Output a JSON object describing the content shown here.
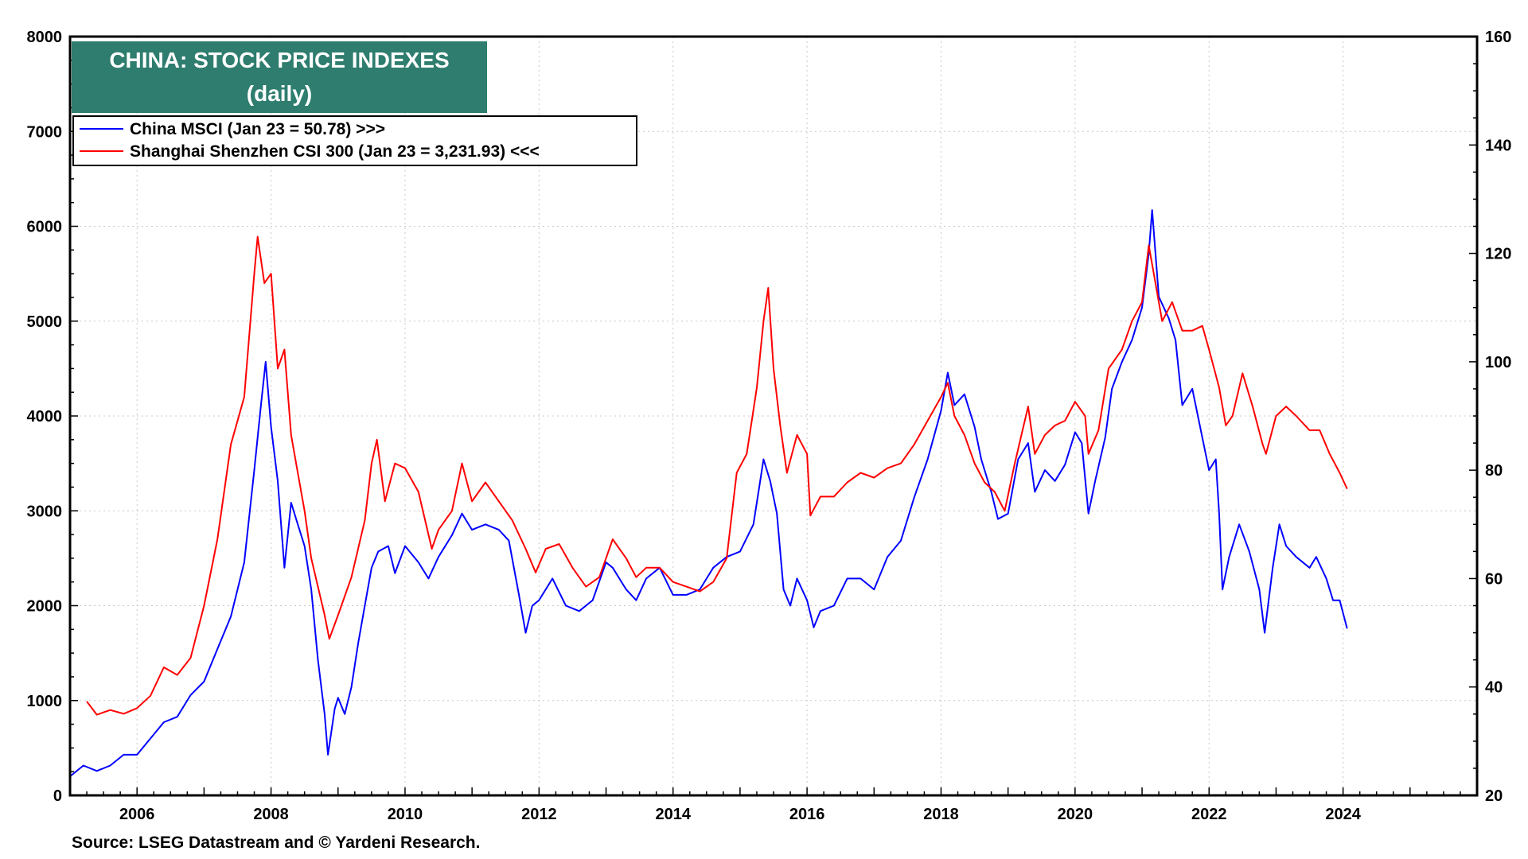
{
  "colors": {
    "title_bg": "#2e7d6e",
    "title_text": "#ffffff",
    "msci": "#0000ff",
    "csi": "#ff0000",
    "grid": "#c8c8c8",
    "axis": "#000000"
  },
  "chart_data": {
    "type": "line",
    "title": "CHINA: STOCK PRICE INDEXES",
    "subtitle": "(daily)",
    "source": "Source: LSEG Datastream and © Yardeni Research.",
    "grid": true,
    "legend_position": "top-left",
    "x_axis": {
      "range": [
        2005.0,
        2026.0
      ],
      "ticks": [
        2006,
        2008,
        2010,
        2012,
        2014,
        2016,
        2018,
        2020,
        2022,
        2024
      ],
      "tick_labels": [
        "2006",
        "2008",
        "2010",
        "2012",
        "2014",
        "2016",
        "2018",
        "2020",
        "2022",
        "2024"
      ]
    },
    "y_axis_left": {
      "range": [
        0,
        8000
      ],
      "ticks": [
        0,
        1000,
        2000,
        3000,
        4000,
        5000,
        6000,
        7000,
        8000
      ],
      "tick_labels": [
        "0",
        "1000",
        "2000",
        "3000",
        "4000",
        "5000",
        "6000",
        "7000",
        "8000"
      ]
    },
    "y_axis_right": {
      "range": [
        20,
        160
      ],
      "ticks": [
        20,
        40,
        60,
        80,
        100,
        120,
        140,
        160
      ],
      "tick_labels": [
        "20",
        "40",
        "60",
        "80",
        "100",
        "120",
        "140",
        "160"
      ]
    },
    "series": [
      {
        "name": "China MSCI (Jan 23 = 50.78) >>>",
        "axis": "right",
        "color": "#0000ff",
        "points": [
          [
            2005.0,
            23.5
          ],
          [
            2005.2,
            25.5
          ],
          [
            2005.4,
            24.5
          ],
          [
            2005.6,
            25.5
          ],
          [
            2005.8,
            27.5
          ],
          [
            2006.0,
            27.5
          ],
          [
            2006.2,
            30.5
          ],
          [
            2006.4,
            33.5
          ],
          [
            2006.6,
            34.5
          ],
          [
            2006.8,
            38.5
          ],
          [
            2007.0,
            41.0
          ],
          [
            2007.2,
            47.0
          ],
          [
            2007.4,
            53.0
          ],
          [
            2007.6,
            63.0
          ],
          [
            2007.75,
            80.0
          ],
          [
            2007.85,
            92.0
          ],
          [
            2007.92,
            100.0
          ],
          [
            2008.0,
            88.0
          ],
          [
            2008.1,
            78.0
          ],
          [
            2008.2,
            62.0
          ],
          [
            2008.3,
            74.0
          ],
          [
            2008.4,
            70.0
          ],
          [
            2008.5,
            66.0
          ],
          [
            2008.6,
            58.0
          ],
          [
            2008.7,
            45.0
          ],
          [
            2008.8,
            35.0
          ],
          [
            2008.85,
            27.5
          ],
          [
            2008.95,
            36.0
          ],
          [
            2009.0,
            38.0
          ],
          [
            2009.1,
            35.0
          ],
          [
            2009.2,
            40.0
          ],
          [
            2009.3,
            48.0
          ],
          [
            2009.4,
            55.0
          ],
          [
            2009.5,
            62.0
          ],
          [
            2009.6,
            65.0
          ],
          [
            2009.75,
            66.0
          ],
          [
            2009.85,
            61.0
          ],
          [
            2010.0,
            66.0
          ],
          [
            2010.2,
            63.0
          ],
          [
            2010.35,
            60.0
          ],
          [
            2010.5,
            64.0
          ],
          [
            2010.7,
            68.0
          ],
          [
            2010.85,
            72.0
          ],
          [
            2011.0,
            69.0
          ],
          [
            2011.2,
            70.0
          ],
          [
            2011.4,
            69.0
          ],
          [
            2011.55,
            67.0
          ],
          [
            2011.7,
            57.0
          ],
          [
            2011.8,
            50.0
          ],
          [
            2011.9,
            55.0
          ],
          [
            2012.0,
            56.0
          ],
          [
            2012.2,
            60.0
          ],
          [
            2012.4,
            55.0
          ],
          [
            2012.6,
            54.0
          ],
          [
            2012.8,
            56.0
          ],
          [
            2013.0,
            63.0
          ],
          [
            2013.1,
            62.0
          ],
          [
            2013.3,
            58.0
          ],
          [
            2013.45,
            56.0
          ],
          [
            2013.6,
            60.0
          ],
          [
            2013.8,
            62.0
          ],
          [
            2014.0,
            57.0
          ],
          [
            2014.2,
            57.0
          ],
          [
            2014.4,
            58.0
          ],
          [
            2014.6,
            62.0
          ],
          [
            2014.8,
            64.0
          ],
          [
            2015.0,
            65.0
          ],
          [
            2015.2,
            70.0
          ],
          [
            2015.3,
            78.0
          ],
          [
            2015.35,
            82.0
          ],
          [
            2015.45,
            78.0
          ],
          [
            2015.55,
            72.0
          ],
          [
            2015.65,
            58.0
          ],
          [
            2015.75,
            55.0
          ],
          [
            2015.85,
            60.0
          ],
          [
            2016.0,
            56.0
          ],
          [
            2016.1,
            51.0
          ],
          [
            2016.2,
            54.0
          ],
          [
            2016.4,
            55.0
          ],
          [
            2016.6,
            60.0
          ],
          [
            2016.8,
            60.0
          ],
          [
            2017.0,
            58.0
          ],
          [
            2017.2,
            64.0
          ],
          [
            2017.4,
            67.0
          ],
          [
            2017.6,
            75.0
          ],
          [
            2017.8,
            82.0
          ],
          [
            2018.0,
            91.0
          ],
          [
            2018.1,
            98.0
          ],
          [
            2018.2,
            92.0
          ],
          [
            2018.35,
            94.0
          ],
          [
            2018.5,
            88.0
          ],
          [
            2018.6,
            82.0
          ],
          [
            2018.75,
            76.0
          ],
          [
            2018.85,
            71.0
          ],
          [
            2019.0,
            72.0
          ],
          [
            2019.15,
            82.0
          ],
          [
            2019.3,
            85.0
          ],
          [
            2019.4,
            76.0
          ],
          [
            2019.55,
            80.0
          ],
          [
            2019.7,
            78.0
          ],
          [
            2019.85,
            81.0
          ],
          [
            2020.0,
            87.0
          ],
          [
            2020.1,
            85.0
          ],
          [
            2020.2,
            72.0
          ],
          [
            2020.3,
            78.0
          ],
          [
            2020.45,
            86.0
          ],
          [
            2020.55,
            95.0
          ],
          [
            2020.7,
            100.0
          ],
          [
            2020.85,
            104.0
          ],
          [
            2021.0,
            110.0
          ],
          [
            2021.1,
            120.0
          ],
          [
            2021.15,
            128.0
          ],
          [
            2021.25,
            112.0
          ],
          [
            2021.4,
            108.0
          ],
          [
            2021.5,
            104.0
          ],
          [
            2021.6,
            92.0
          ],
          [
            2021.75,
            95.0
          ],
          [
            2021.9,
            86.0
          ],
          [
            2022.0,
            80.0
          ],
          [
            2022.1,
            82.0
          ],
          [
            2022.15,
            72.0
          ],
          [
            2022.2,
            58.0
          ],
          [
            2022.3,
            64.0
          ],
          [
            2022.45,
            70.0
          ],
          [
            2022.6,
            65.0
          ],
          [
            2022.75,
            58.0
          ],
          [
            2022.83,
            50.0
          ],
          [
            2022.95,
            62.0
          ],
          [
            2023.05,
            70.0
          ],
          [
            2023.15,
            66.0
          ],
          [
            2023.3,
            64.0
          ],
          [
            2023.5,
            62.0
          ],
          [
            2023.6,
            64.0
          ],
          [
            2023.75,
            60.0
          ],
          [
            2023.85,
            56.0
          ],
          [
            2023.95,
            56.0
          ],
          [
            2024.06,
            50.78
          ]
        ]
      },
      {
        "name": "Shanghai Shenzhen CSI 300 (Jan 23 = 3,231.93) <<<",
        "axis": "left",
        "color": "#ff0000",
        "points": [
          [
            2005.25,
            990
          ],
          [
            2005.4,
            850
          ],
          [
            2005.6,
            900
          ],
          [
            2005.8,
            860
          ],
          [
            2006.0,
            920
          ],
          [
            2006.2,
            1050
          ],
          [
            2006.4,
            1350
          ],
          [
            2006.6,
            1270
          ],
          [
            2006.8,
            1450
          ],
          [
            2007.0,
            2000
          ],
          [
            2007.2,
            2700
          ],
          [
            2007.4,
            3700
          ],
          [
            2007.6,
            4200
          ],
          [
            2007.75,
            5500
          ],
          [
            2007.8,
            5890
          ],
          [
            2007.9,
            5400
          ],
          [
            2008.0,
            5500
          ],
          [
            2008.1,
            4500
          ],
          [
            2008.2,
            4700
          ],
          [
            2008.3,
            3800
          ],
          [
            2008.4,
            3400
          ],
          [
            2008.5,
            3000
          ],
          [
            2008.6,
            2500
          ],
          [
            2008.7,
            2200
          ],
          [
            2008.8,
            1900
          ],
          [
            2008.87,
            1650
          ],
          [
            2009.0,
            1900
          ],
          [
            2009.2,
            2300
          ],
          [
            2009.4,
            2900
          ],
          [
            2009.5,
            3500
          ],
          [
            2009.58,
            3750
          ],
          [
            2009.7,
            3100
          ],
          [
            2009.85,
            3500
          ],
          [
            2010.0,
            3450
          ],
          [
            2010.2,
            3200
          ],
          [
            2010.4,
            2600
          ],
          [
            2010.5,
            2800
          ],
          [
            2010.7,
            3000
          ],
          [
            2010.85,
            3500
          ],
          [
            2011.0,
            3100
          ],
          [
            2011.2,
            3300
          ],
          [
            2011.4,
            3100
          ],
          [
            2011.6,
            2900
          ],
          [
            2011.8,
            2600
          ],
          [
            2011.95,
            2350
          ],
          [
            2012.1,
            2600
          ],
          [
            2012.3,
            2650
          ],
          [
            2012.5,
            2400
          ],
          [
            2012.7,
            2200
          ],
          [
            2012.9,
            2300
          ],
          [
            2013.1,
            2700
          ],
          [
            2013.3,
            2500
          ],
          [
            2013.45,
            2300
          ],
          [
            2013.6,
            2400
          ],
          [
            2013.8,
            2400
          ],
          [
            2014.0,
            2250
          ],
          [
            2014.2,
            2200
          ],
          [
            2014.4,
            2150
          ],
          [
            2014.6,
            2250
          ],
          [
            2014.8,
            2500
          ],
          [
            2014.95,
            3400
          ],
          [
            2015.1,
            3600
          ],
          [
            2015.25,
            4300
          ],
          [
            2015.35,
            5000
          ],
          [
            2015.42,
            5350
          ],
          [
            2015.5,
            4500
          ],
          [
            2015.6,
            3900
          ],
          [
            2015.7,
            3400
          ],
          [
            2015.85,
            3800
          ],
          [
            2016.0,
            3600
          ],
          [
            2016.05,
            2950
          ],
          [
            2016.2,
            3150
          ],
          [
            2016.4,
            3150
          ],
          [
            2016.6,
            3300
          ],
          [
            2016.8,
            3400
          ],
          [
            2017.0,
            3350
          ],
          [
            2017.2,
            3450
          ],
          [
            2017.4,
            3500
          ],
          [
            2017.6,
            3700
          ],
          [
            2017.8,
            3950
          ],
          [
            2018.0,
            4200
          ],
          [
            2018.1,
            4350
          ],
          [
            2018.2,
            4000
          ],
          [
            2018.35,
            3800
          ],
          [
            2018.5,
            3500
          ],
          [
            2018.65,
            3300
          ],
          [
            2018.8,
            3200
          ],
          [
            2018.95,
            3000
          ],
          [
            2019.1,
            3500
          ],
          [
            2019.3,
            4100
          ],
          [
            2019.4,
            3600
          ],
          [
            2019.55,
            3800
          ],
          [
            2019.7,
            3900
          ],
          [
            2019.85,
            3950
          ],
          [
            2020.0,
            4150
          ],
          [
            2020.15,
            4000
          ],
          [
            2020.2,
            3600
          ],
          [
            2020.35,
            3850
          ],
          [
            2020.5,
            4500
          ],
          [
            2020.7,
            4700
          ],
          [
            2020.85,
            5000
          ],
          [
            2021.0,
            5200
          ],
          [
            2021.1,
            5800
          ],
          [
            2021.2,
            5400
          ],
          [
            2021.3,
            5000
          ],
          [
            2021.45,
            5200
          ],
          [
            2021.6,
            4900
          ],
          [
            2021.75,
            4900
          ],
          [
            2021.9,
            4950
          ],
          [
            2022.0,
            4700
          ],
          [
            2022.15,
            4300
          ],
          [
            2022.25,
            3900
          ],
          [
            2022.35,
            4000
          ],
          [
            2022.5,
            4450
          ],
          [
            2022.65,
            4100
          ],
          [
            2022.8,
            3700
          ],
          [
            2022.85,
            3600
          ],
          [
            2023.0,
            4000
          ],
          [
            2023.15,
            4100
          ],
          [
            2023.3,
            4000
          ],
          [
            2023.5,
            3850
          ],
          [
            2023.65,
            3850
          ],
          [
            2023.8,
            3600
          ],
          [
            2023.95,
            3400
          ],
          [
            2024.06,
            3231.93
          ]
        ]
      }
    ]
  }
}
